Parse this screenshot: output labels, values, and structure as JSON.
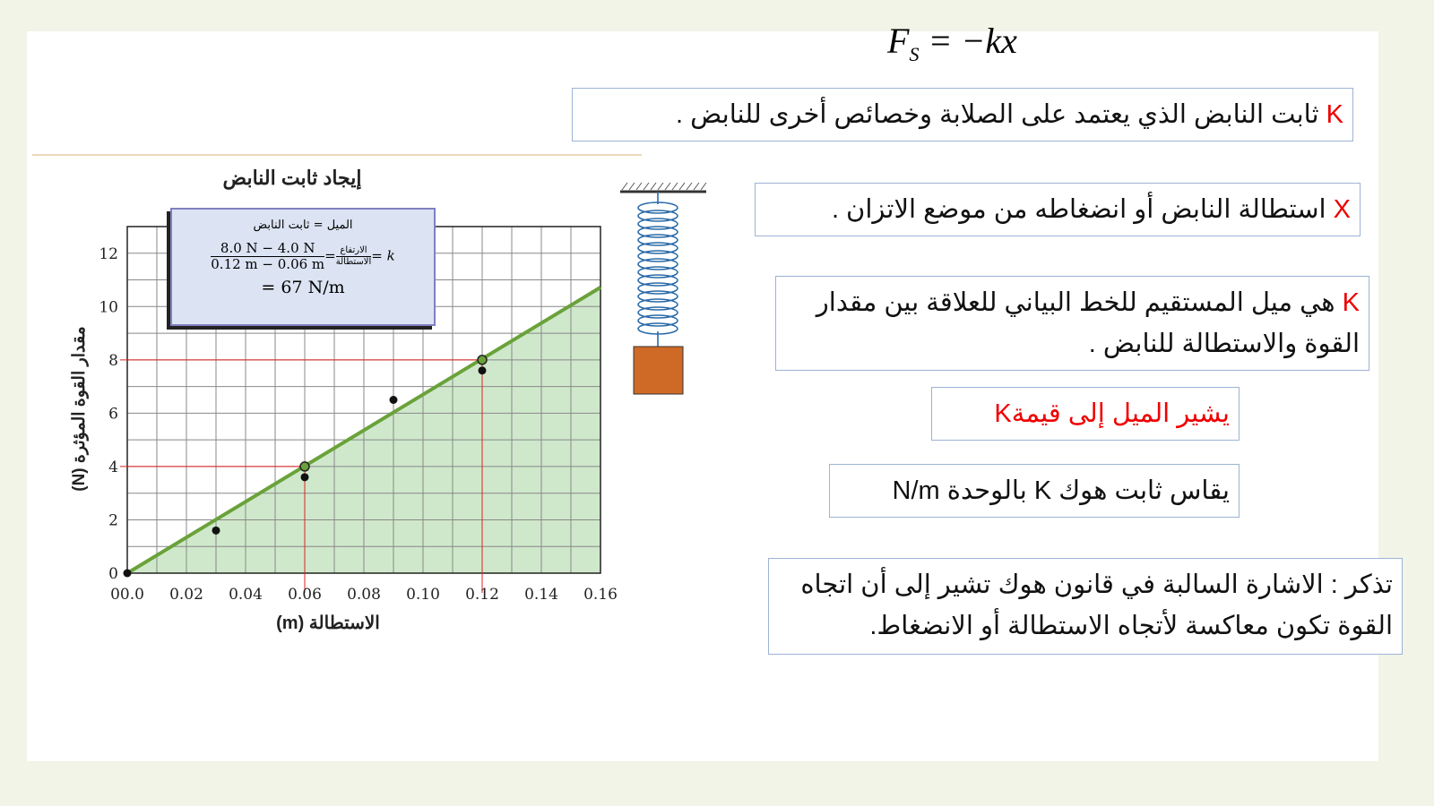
{
  "formula": {
    "lhs": "F",
    "sub": "S",
    "rhs": "= −kx⃗"
  },
  "boxes": [
    {
      "key": "K",
      "text": "ثابت النابض الذي يعتمد على الصلابة وخصائص أخرى للنابض ."
    },
    {
      "key": "X",
      "text": "استطالة النابض أو انضغاطه من موضع الاتزان ."
    },
    {
      "key": "K",
      "text": "هي ميل المستقيم للخط البياني للعلاقة بين مقدار القوة والاستطالة للنابض ."
    },
    {
      "text": "يشير الميل إلى قيمة",
      "key": "K"
    },
    {
      "text": "يقاس ثابت هوك K بالوحدة N/m"
    },
    {
      "text": "تذكر : الاشارة السالبة في قانون هوك تشير إلى أن اتجاه القوة تكون معاكسة لأتجاه الاستطالة أو الانضغاط."
    }
  ],
  "callout": {
    "line1": "الميل = ثابت النابض",
    "num": "8.0 N − 4.0 N",
    "den": "0.12 m − 0.06 m",
    "rnum": "الارتفاع",
    "rden": "الاستطالة",
    "k": "= k",
    "eq": "=",
    "result": "= 67 N/m"
  },
  "colors": {
    "fill": "#cfe8cb",
    "line": "#6aa23a",
    "guide": "#e02020",
    "mass": "#cf6a26",
    "callout": "#dce4f4"
  },
  "chart_data": {
    "type": "scatter",
    "title": "إيجاد ثابت النابض",
    "xlabel": "الاستطالة (m)",
    "ylabel": "مقدار القوة المؤثرة (N)",
    "xlim": [
      0,
      0.16
    ],
    "ylim": [
      0,
      13
    ],
    "xticks": [
      "00.0",
      "0.02",
      "0.04",
      "0.06",
      "0.08",
      "0.10",
      "0.12",
      "0.14",
      "0.16"
    ],
    "yticks": [
      "0",
      "2",
      "4",
      "6",
      "8",
      "10",
      "12"
    ],
    "grid": true,
    "points": [
      {
        "x": 0,
        "y": 0
      },
      {
        "x": 0.03,
        "y": 1.6
      },
      {
        "x": 0.06,
        "y": 3.6
      },
      {
        "x": 0.09,
        "y": 6.5
      },
      {
        "x": 0.12,
        "y": 7.6
      }
    ],
    "fit_line": {
      "slope": 67,
      "intercept": 0
    },
    "highlight_points": [
      {
        "x": 0.06,
        "y": 4
      },
      {
        "x": 0.12,
        "y": 8
      }
    ]
  }
}
